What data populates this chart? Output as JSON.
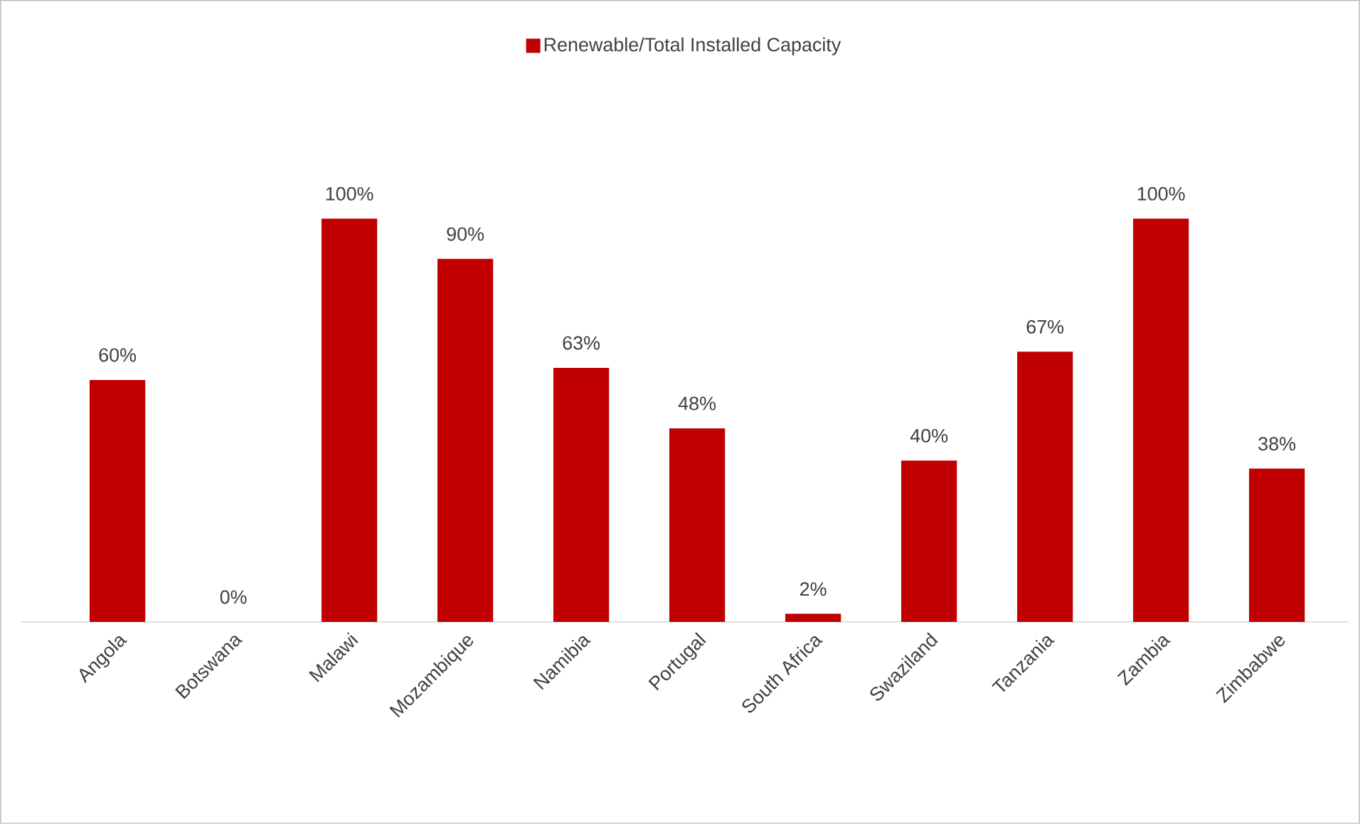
{
  "chart_data": {
    "type": "bar",
    "categories": [
      "Angola",
      "Botswana",
      "Malawi",
      "Mozambique",
      "Namibia",
      "Portugal",
      "South Africa",
      "Swaziland",
      "Tanzania",
      "Zambia",
      "Zimbabwe"
    ],
    "series": [
      {
        "name": "Renewable/Total Installed Capacity",
        "color": "#c00000",
        "values": [
          60,
          0,
          100,
          90,
          63,
          48,
          2,
          40,
          67,
          100,
          38
        ],
        "value_labels": [
          "60%",
          "0%",
          "100%",
          "90%",
          "63%",
          "48%",
          "2%",
          "40%",
          "67%",
          "100%",
          "38%"
        ]
      }
    ],
    "legend": "top"
  }
}
